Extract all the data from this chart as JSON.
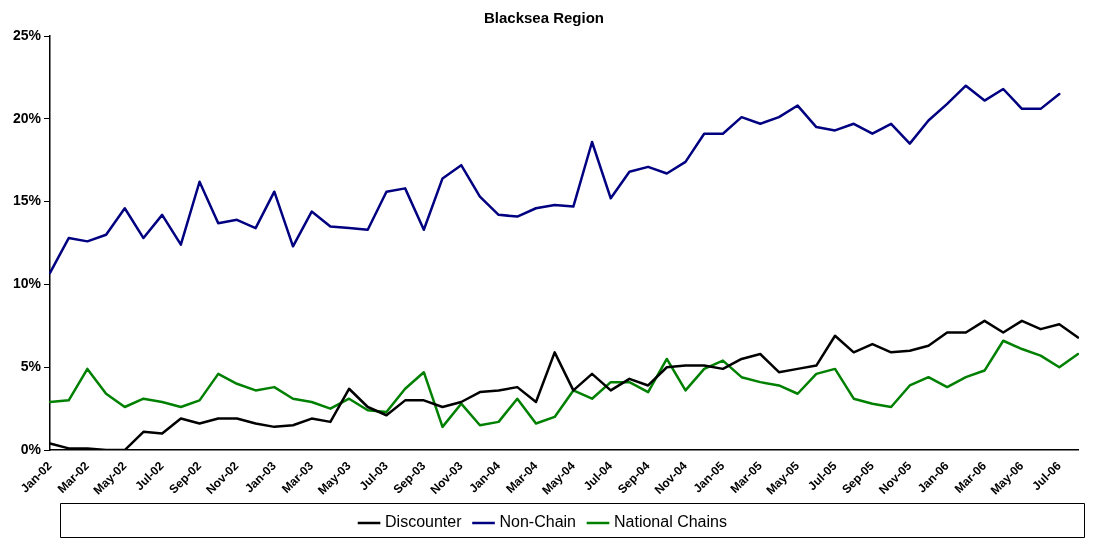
{
  "chart_data": {
    "type": "line",
    "title": "Blacksea Region",
    "categories": [
      "Jan-02",
      null,
      "Mar-02",
      null,
      "May-02",
      null,
      "Jul-02",
      null,
      "Sep-02",
      null,
      "Nov-02",
      null,
      "Jan-03",
      null,
      "Mar-03",
      null,
      "May-03",
      null,
      "Jul-03",
      null,
      "Sep-03",
      null,
      "Nov-03",
      null,
      "Jan-04",
      null,
      "Mar-04",
      null,
      "May-04",
      null,
      "Jul-04",
      null,
      "Sep-04",
      null,
      "Nov-04",
      null,
      "Jan-05",
      null,
      "Mar-05",
      null,
      "May-05",
      null,
      "Jul-05",
      null,
      "Sep-05",
      null,
      "Nov-05",
      null,
      "Jan-06",
      null,
      "Mar-06",
      null,
      "May-06",
      null,
      "Jul-06",
      null
    ],
    "series": [
      {
        "name": "Discounter",
        "color": "#000000",
        "values": [
          0.4,
          0.1,
          0.1,
          0,
          0,
          1.1,
          1.0,
          1.9,
          1.6,
          1.9,
          1.9,
          1.6,
          1.4,
          1.5,
          1.9,
          1.7,
          3.7,
          2.6,
          2.1,
          3.0,
          3.0,
          2.6,
          2.9,
          3.5,
          3.6,
          3.8,
          2.9,
          5.9,
          3.6,
          4.6,
          3.6,
          4.3,
          3.9,
          5.0,
          5.1,
          5.1,
          4.9,
          5.5,
          5.8,
          4.7,
          4.9,
          5.1,
          6.9,
          5.9,
          6.4,
          5.9,
          6.0,
          6.3,
          7.1,
          7.1,
          7.8,
          7.1,
          7.8,
          7.3,
          7.6,
          6.8
        ]
      },
      {
        "name": "Non-Chain",
        "color": "#000080",
        "values": [
          10.7,
          12.8,
          12.6,
          13.0,
          14.6,
          12.8,
          14.2,
          12.4,
          16.2,
          13.7,
          13.9,
          13.4,
          15.6,
          12.3,
          14.4,
          13.5,
          13.4,
          13.3,
          15.6,
          15.8,
          13.3,
          16.4,
          17.2,
          15.3,
          14.2,
          14.1,
          14.6,
          14.8,
          14.7,
          18.6,
          15.2,
          16.8,
          17.1,
          16.7,
          17.4,
          19.1,
          19.1,
          20.1,
          19.7,
          20.1,
          20.8,
          19.5,
          19.3,
          19.7,
          19.1,
          19.7,
          18.5,
          19.9,
          20.9,
          22.0,
          21.1,
          21.8,
          20.6,
          20.6,
          21.5,
          null
        ]
      },
      {
        "name": "National Chains",
        "color": "#008000",
        "values": [
          2.9,
          3.0,
          4.9,
          3.4,
          2.6,
          3.1,
          2.9,
          2.6,
          3.0,
          4.6,
          4.0,
          3.6,
          3.8,
          3.1,
          2.9,
          2.5,
          3.1,
          2.4,
          2.3,
          3.7,
          4.7,
          1.4,
          2.8,
          1.5,
          1.7,
          3.1,
          1.6,
          2.0,
          3.6,
          3.1,
          4.1,
          4.1,
          3.5,
          5.5,
          3.6,
          4.9,
          5.4,
          4.4,
          4.1,
          3.9,
          3.4,
          4.6,
          4.9,
          3.1,
          2.8,
          2.6,
          3.9,
          4.4,
          3.8,
          4.4,
          4.8,
          6.6,
          6.1,
          5.7,
          5.0,
          5.8
        ]
      }
    ],
    "ylim": [
      0,
      25
    ],
    "yticks": [
      {
        "value": 0,
        "label": "0%"
      },
      {
        "value": 5,
        "label": "5%"
      },
      {
        "value": 10,
        "label": "10%"
      },
      {
        "value": 15,
        "label": "15%"
      },
      {
        "value": 20,
        "label": "20%"
      },
      {
        "value": 25,
        "label": "25%"
      }
    ],
    "grid": false,
    "legend": "bottom",
    "marker": "none",
    "line_style": "solid"
  }
}
